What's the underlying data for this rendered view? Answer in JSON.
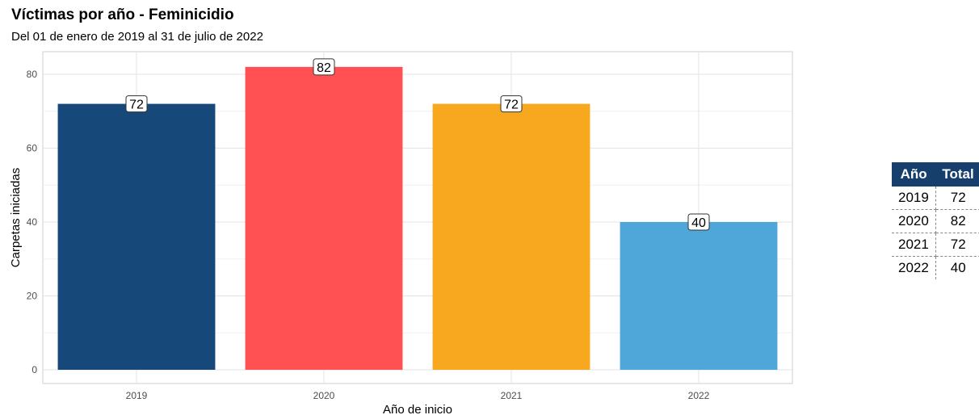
{
  "chart_data": {
    "type": "bar",
    "title": "Víctimas por año - Feminicidio",
    "subtitle": "Del 01 de enero de 2019 al 31 de julio de 2022",
    "xlabel": "Año de inicio",
    "ylabel": "Carpetas iniciadas",
    "categories": [
      "2019",
      "2020",
      "2021",
      "2022"
    ],
    "values": [
      72,
      82,
      72,
      40
    ],
    "data_labels": [
      "72",
      "82",
      "72",
      "40"
    ],
    "colors": [
      "#17487a",
      "#ff5053",
      "#f8a81e",
      "#4fa6d8"
    ],
    "ylim": [
      0,
      84
    ],
    "yticks": [
      0,
      20,
      40,
      60,
      80
    ],
    "grid": true,
    "legend": "none"
  },
  "table": {
    "headers": [
      "Año",
      "Total"
    ],
    "rows": [
      [
        "2019",
        "72"
      ],
      [
        "2020",
        "82"
      ],
      [
        "2021",
        "72"
      ],
      [
        "2022",
        "40"
      ]
    ]
  }
}
